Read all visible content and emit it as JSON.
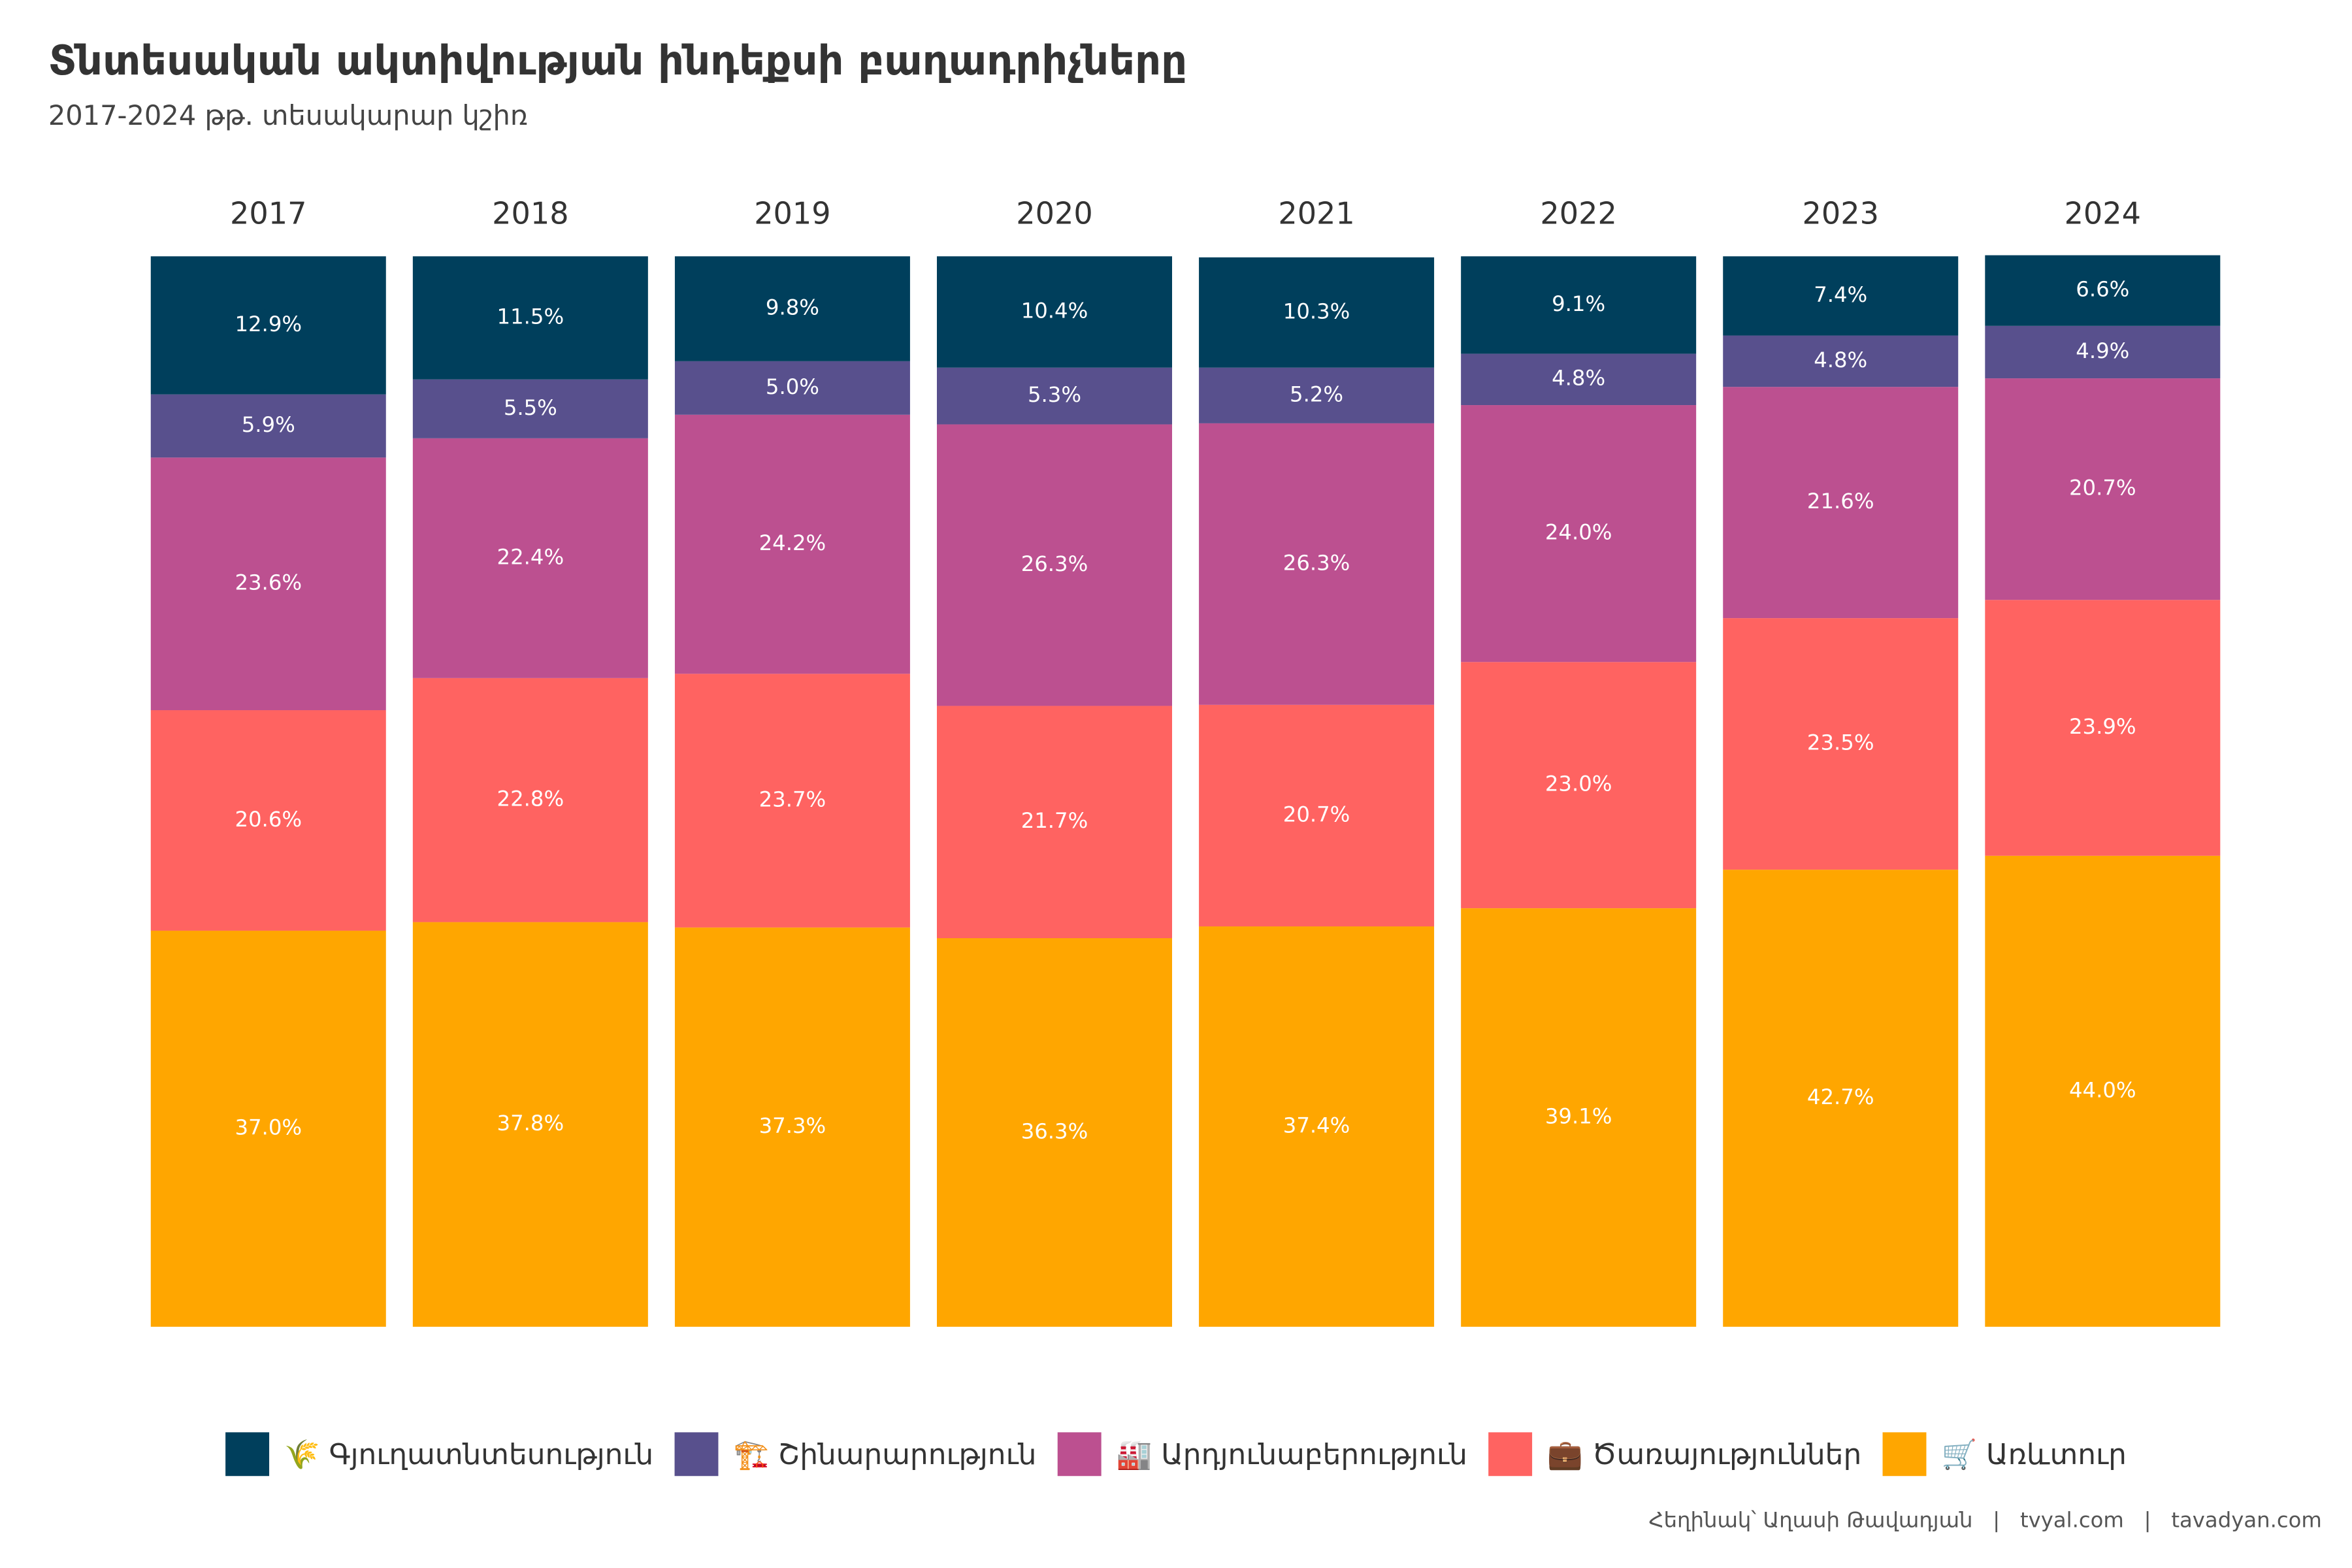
{
  "chart_data": {
    "type": "stacked_bar",
    "title": "Տնտեսական ակտիվության ինդեքսի բաղադրիչները",
    "subtitle": "2017-2024 թթ. տեսակարար կշիռ",
    "caption": "Հեղինակ՝ Աղասի Թավադյան   |   tvyal.com   |   tavadyan.com",
    "categories": [
      "2017",
      "2018",
      "2019",
      "2020",
      "2021",
      "2022",
      "2023",
      "2024"
    ],
    "ylim": [
      0,
      100
    ],
    "series": [
      {
        "name": "🛒 Առևտուր",
        "color": "#FFA600",
        "values": [
          37.0,
          37.8,
          37.3,
          36.3,
          37.4,
          39.1,
          42.7,
          44.0
        ],
        "value_labels": [
          "37.0%",
          "37.8%",
          "37.3%",
          "36.3%",
          "37.4%",
          "39.1%",
          "42.7%",
          "44.0%"
        ]
      },
      {
        "name": "💼 Ծառայություններ",
        "color": "#FF6361",
        "values": [
          20.6,
          22.8,
          23.7,
          21.7,
          20.7,
          23.0,
          23.5,
          23.9
        ],
        "value_labels": [
          "20.6%",
          "22.8%",
          "23.7%",
          "21.7%",
          "20.7%",
          "23.0%",
          "23.5%",
          "23.9%"
        ]
      },
      {
        "name": "🏭 Արդյունաբերություն",
        "color": "#BC5090",
        "values": [
          23.6,
          22.4,
          24.2,
          26.3,
          26.3,
          24.0,
          21.6,
          20.7
        ],
        "value_labels": [
          "23.6%",
          "22.4%",
          "24.2%",
          "26.3%",
          "26.3%",
          "24.0%",
          "21.6%",
          "20.7%"
        ]
      },
      {
        "name": "🏗️ Շինարարություն",
        "color": "#58508D",
        "values": [
          5.9,
          5.5,
          5.0,
          5.3,
          5.2,
          4.8,
          4.8,
          4.9
        ],
        "value_labels": [
          "5.9%",
          "5.5%",
          "5.0%",
          "5.3%",
          "5.2%",
          "4.8%",
          "4.8%",
          "4.9%"
        ]
      },
      {
        "name": "🌾 Գյուղատնտեսություն",
        "color": "#003F5C",
        "values": [
          12.9,
          11.5,
          9.8,
          10.4,
          10.3,
          9.1,
          7.4,
          6.6
        ],
        "value_labels": [
          "12.9%",
          "11.5%",
          "9.8%",
          "10.4%",
          "10.3%",
          "9.1%",
          "7.4%",
          "6.6%"
        ]
      }
    ]
  }
}
